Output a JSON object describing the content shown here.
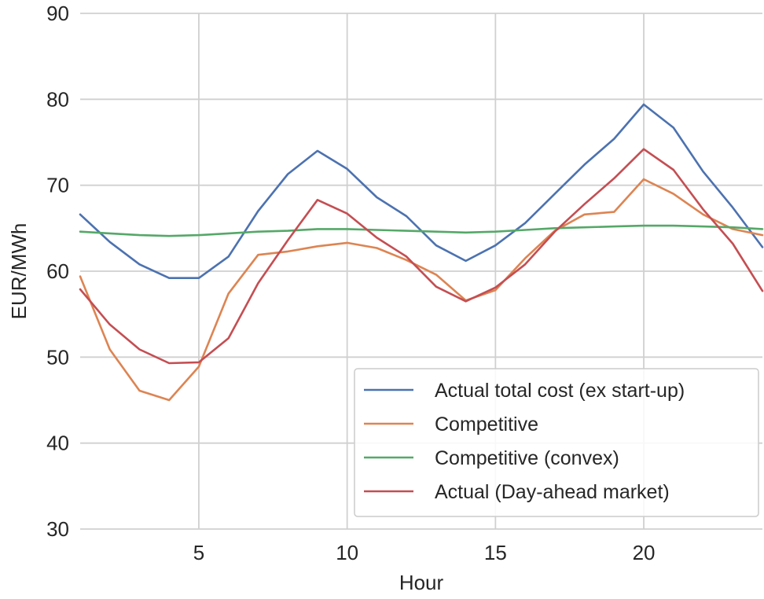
{
  "chart_data": {
    "type": "line",
    "xlabel": "Hour",
    "ylabel": "EUR/MWh",
    "xlim": [
      1,
      24
    ],
    "ylim": [
      30,
      90
    ],
    "x_ticks": [
      5,
      10,
      15,
      20
    ],
    "y_ticks": [
      30,
      40,
      50,
      60,
      70,
      80,
      90
    ],
    "grid": true,
    "legend_position": "lower-right",
    "x": [
      1,
      2,
      3,
      4,
      5,
      6,
      7,
      8,
      9,
      10,
      11,
      12,
      13,
      14,
      15,
      16,
      17,
      18,
      19,
      20,
      21,
      22,
      23,
      24
    ],
    "series": [
      {
        "name": "Actual total cost (ex start-up)",
        "color": "#4c72b0",
        "values": [
          66.6,
          63.4,
          60.8,
          59.2,
          59.2,
          61.7,
          67.0,
          71.3,
          74.0,
          71.9,
          68.6,
          66.4,
          63.0,
          61.2,
          63.0,
          65.6,
          69.0,
          72.4,
          75.4,
          79.4,
          76.7,
          71.6,
          67.4,
          62.8
        ]
      },
      {
        "name": "Competitive",
        "color": "#dd8452",
        "values": [
          59.4,
          50.9,
          46.1,
          45.0,
          48.9,
          57.4,
          61.9,
          62.3,
          62.9,
          63.3,
          62.7,
          61.3,
          59.6,
          56.6,
          57.8,
          61.5,
          64.7,
          66.6,
          66.9,
          70.7,
          69.0,
          66.6,
          64.9,
          64.2
        ]
      },
      {
        "name": "Competitive (convex)",
        "color": "#55a868",
        "values": [
          64.6,
          64.4,
          64.2,
          64.1,
          64.2,
          64.4,
          64.6,
          64.7,
          64.9,
          64.9,
          64.8,
          64.7,
          64.6,
          64.5,
          64.6,
          64.8,
          65.0,
          65.1,
          65.2,
          65.3,
          65.3,
          65.2,
          65.1,
          64.9
        ]
      },
      {
        "name": "Actual (Day-ahead market)",
        "color": "#c44e52",
        "values": [
          57.9,
          53.8,
          50.9,
          49.3,
          49.4,
          52.2,
          58.6,
          63.6,
          68.3,
          66.7,
          63.9,
          61.7,
          58.2,
          56.5,
          58.1,
          60.8,
          64.6,
          67.8,
          70.8,
          74.2,
          71.8,
          67.2,
          63.2,
          57.7
        ]
      }
    ]
  }
}
